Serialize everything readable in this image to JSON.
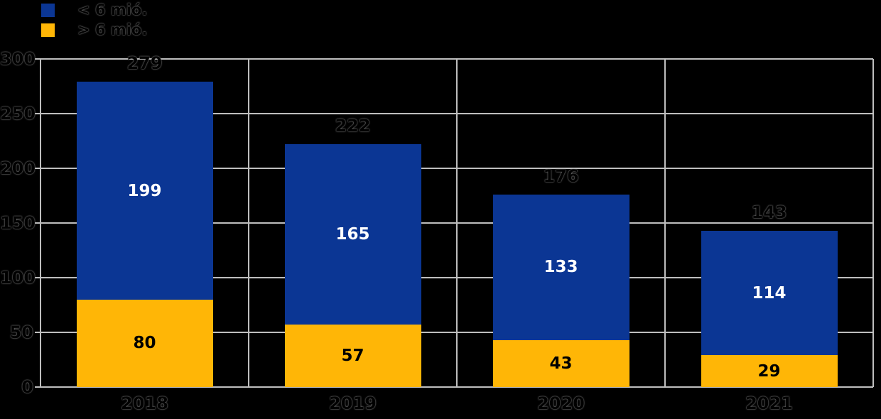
{
  "chart_data": {
    "type": "bar",
    "stacked": true,
    "title": "",
    "xlabel": "",
    "ylabel": "",
    "categories": [
      "2018",
      "2019",
      "2020",
      "2021"
    ],
    "series": [
      {
        "name": "< 6 mió.",
        "color": "#0B3694",
        "label_color": "#FFFFFF",
        "values": [
          199,
          165,
          133,
          114
        ]
      },
      {
        "name": "> 6 mió.",
        "color": "#FFB606",
        "label_color": "#000000",
        "values": [
          80,
          57,
          43,
          29
        ]
      }
    ],
    "totals": [
      279,
      222,
      176,
      143
    ],
    "ylim": [
      0,
      300
    ],
    "yticks": [
      0,
      50,
      100,
      150,
      200,
      250,
      300
    ],
    "grid": true,
    "legend_position": "top-left",
    "colors": {
      "background": "#000000",
      "gridline": "#BEBEBE",
      "axis_text": "#000000"
    }
  }
}
